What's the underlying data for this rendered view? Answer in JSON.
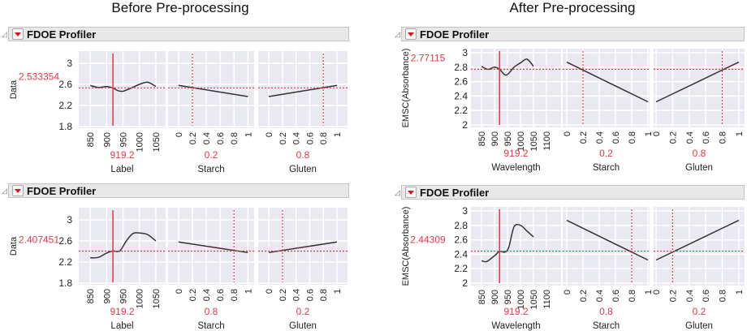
{
  "section_titles": {
    "before": "Before Pre-processing",
    "after": "After Pre-processing"
  },
  "colors": {
    "curve": "#333333",
    "crosshair": "#e8354a",
    "plot_bg": "#e9e9f2",
    "grid": "#ffffff",
    "value_text": "#e8354a"
  },
  "icons": {
    "disclosure": "collapse-triangle-icon",
    "menu": "red-dropdown-menu-icon"
  },
  "chart_data": [
    {
      "type": "line",
      "title": "FDOE Profiler",
      "ylabel": "Data",
      "y_value": "2.533354",
      "ylim": [
        1.77,
        3.23
      ],
      "yticks": [
        "1.8",
        "2.2",
        "2.6",
        "3"
      ],
      "factors": [
        {
          "label": "Label",
          "current": "919.2",
          "xlim": [
            815,
            1080
          ],
          "xticks": [
            "850",
            "900",
            "950",
            "1000",
            "1050"
          ],
          "x": [
            850,
            875,
            900,
            919.2,
            935,
            950,
            975,
            1000,
            1025,
            1050
          ],
          "y": [
            2.58,
            2.54,
            2.56,
            2.53,
            2.48,
            2.47,
            2.53,
            2.6,
            2.64,
            2.56
          ]
        },
        {
          "label": "Starch",
          "current": "0.2",
          "xlim": [
            -0.15,
            1.09
          ],
          "xticks": [
            "0",
            "0.2",
            "0.4",
            "0.6",
            "0.8",
            "1"
          ],
          "x": [
            0,
            1
          ],
          "y": [
            2.58,
            2.37
          ]
        },
        {
          "label": "Gluten",
          "current": "0.8",
          "xlim": [
            -0.155,
            1.155
          ],
          "xticks": [
            "0",
            "0.2",
            "0.4",
            "0.6",
            "0.8",
            "1"
          ],
          "x": [
            0,
            1
          ],
          "y": [
            2.37,
            2.58
          ]
        }
      ]
    },
    {
      "type": "line",
      "title": "FDOE Profiler",
      "ylabel": "Data",
      "y_value": "2.407451",
      "ylim": [
        1.77,
        3.23
      ],
      "yticks": [
        "1.8",
        "2.2",
        "2.6",
        "3"
      ],
      "factors": [
        {
          "label": "Label",
          "current": "919.2",
          "xlim": [
            815,
            1080
          ],
          "xticks": [
            "850",
            "900",
            "950",
            "1000",
            "1050"
          ],
          "x": [
            850,
            875,
            900,
            919.2,
            940,
            960,
            980,
            1000,
            1025,
            1050
          ],
          "y": [
            2.28,
            2.29,
            2.37,
            2.41,
            2.41,
            2.6,
            2.74,
            2.75,
            2.72,
            2.6
          ]
        },
        {
          "label": "Starch",
          "current": "0.8",
          "xlim": [
            -0.15,
            1.09
          ],
          "xticks": [
            "0",
            "0.2",
            "0.4",
            "0.6",
            "0.8",
            "1"
          ],
          "x": [
            0,
            1
          ],
          "y": [
            2.58,
            2.38
          ]
        },
        {
          "label": "Gluten",
          "current": "0.2",
          "xlim": [
            -0.155,
            1.155
          ],
          "xticks": [
            "0",
            "0.2",
            "0.4",
            "0.6",
            "0.8",
            "1"
          ],
          "x": [
            0,
            1
          ],
          "y": [
            2.38,
            2.58
          ]
        }
      ]
    },
    {
      "type": "line",
      "title": "FDOE Profiler",
      "ylabel": "EMSC(Absorbance)",
      "y_value": "2.77115",
      "ylim": [
        1.966,
        3.056
      ],
      "yticks": [
        "2",
        "2.2",
        "2.4",
        "2.6",
        "2.8",
        "3"
      ],
      "factors": [
        {
          "label": "Wavelength",
          "current": "919.2",
          "xlim": [
            809,
            1156
          ],
          "xticks": [
            "850",
            "900",
            "950",
            "1000",
            "1050",
            "1100"
          ],
          "x": [
            850,
            875,
            900,
            919.2,
            945,
            975,
            1000,
            1025,
            1050
          ],
          "y": [
            2.81,
            2.77,
            2.8,
            2.77,
            2.69,
            2.8,
            2.86,
            2.91,
            2.81
          ]
        },
        {
          "label": "Starch",
          "current": "0.2",
          "xlim": [
            -0.05,
            1.02
          ],
          "xticks": [
            "0",
            "0.2",
            "0.4",
            "0.6",
            "0.8",
            "1"
          ],
          "x": [
            0,
            1
          ],
          "y": [
            2.87,
            2.32
          ]
        },
        {
          "label": "Gluten",
          "current": "0.8",
          "xlim": [
            -0.03,
            1.07
          ],
          "xticks": [
            "0",
            "0.2",
            "0.4",
            "0.6",
            "0.8",
            "1"
          ],
          "x": [
            0,
            1
          ],
          "y": [
            2.32,
            2.87
          ]
        }
      ]
    },
    {
      "type": "line",
      "title": "FDOE Profiler",
      "ylabel": "EMSC(Absorbance)",
      "y_value": "2.44309",
      "ylim": [
        1.966,
        3.056
      ],
      "yticks": [
        "2",
        "2.2",
        "2.4",
        "2.6",
        "2.8",
        "3"
      ],
      "factors": [
        {
          "label": "Wavelength",
          "current": "919.2",
          "xlim": [
            809,
            1156
          ],
          "xticks": [
            "850",
            "900",
            "950",
            "1000",
            "1050",
            "1100"
          ],
          "x": [
            850,
            870,
            900,
            919.2,
            940,
            955,
            975,
            1000,
            1025,
            1050
          ],
          "y": [
            2.31,
            2.3,
            2.38,
            2.44,
            2.43,
            2.5,
            2.78,
            2.8,
            2.72,
            2.64
          ]
        },
        {
          "label": "Starch",
          "current": "0.8",
          "xlim": [
            -0.05,
            1.02
          ],
          "xticks": [
            "0",
            "0.2",
            "0.4",
            "0.6",
            "0.8",
            "1"
          ],
          "x": [
            0,
            1
          ],
          "y": [
            2.87,
            2.32
          ]
        },
        {
          "label": "Gluten",
          "current": "0.2",
          "xlim": [
            -0.03,
            1.07
          ],
          "xticks": [
            "0",
            "0.2",
            "0.4",
            "0.6",
            "0.8",
            "1"
          ],
          "x": [
            0,
            1
          ],
          "y": [
            2.32,
            2.87
          ]
        }
      ]
    }
  ]
}
